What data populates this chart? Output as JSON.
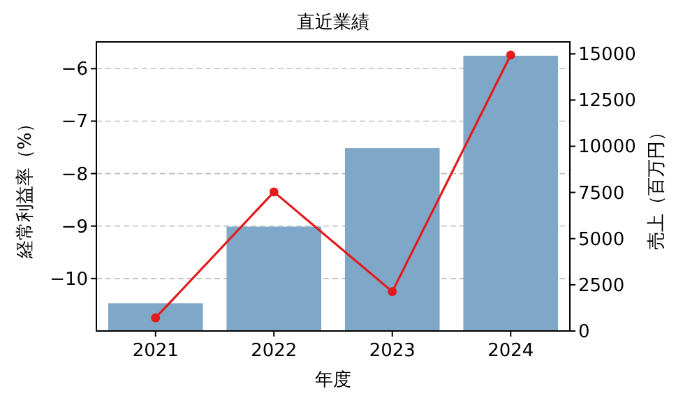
{
  "chart_data": {
    "type": "bar",
    "title": "直近業績",
    "xlabel": "年度",
    "ylabel": "経常利益率（%）",
    "y2label": "売上（百万円）",
    "categories": [
      "2021",
      "2022",
      "2023",
      "2024"
    ],
    "series": [
      {
        "type": "line",
        "color": "#e41a1c",
        "values": [
          -10.75,
          -8.35,
          -10.25,
          -5.74
        ],
        "marker": "circle"
      },
      {
        "axis": "y2",
        "color": "#7fa7c7",
        "values": [
          1500,
          5650,
          9900,
          14900
        ]
      }
    ],
    "ylim": [
      -11.0,
      -5.49
    ],
    "yticks": [
      {
        "value": -10,
        "label": "−10"
      },
      {
        "value": -9,
        "label": "−9"
      },
      {
        "value": -8,
        "label": "−8"
      },
      {
        "value": -7,
        "label": "−7"
      },
      {
        "value": -6,
        "label": "−6"
      }
    ],
    "y2lim": [
      0,
      15650
    ],
    "y2ticks": [
      0,
      2500,
      5000,
      7500,
      10000,
      12500,
      15000
    ],
    "grid": "y"
  }
}
